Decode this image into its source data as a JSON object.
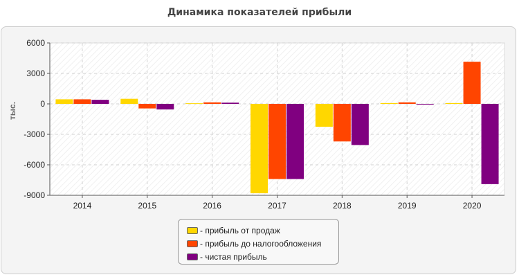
{
  "chart_data": {
    "type": "bar",
    "title": "Динамика показателей прибыли",
    "xlabel": "",
    "ylabel": "тыс.",
    "categories": [
      "2014",
      "2015",
      "2016",
      "2017",
      "2018",
      "2019",
      "2020"
    ],
    "ylim": [
      -9000,
      6000
    ],
    "yticks": [
      6000,
      3000,
      0,
      -3000,
      -6000,
      -9000
    ],
    "ytick_labels": [
      "6000",
      "3000",
      "0",
      "-3000",
      "-6000",
      "-9000"
    ],
    "grid": true,
    "legend_position": "bottom-center",
    "series": [
      {
        "name": "- прибыль от продаж",
        "color": "#ffd700",
        "values": [
          450,
          500,
          60,
          -8800,
          -2250,
          80,
          80
        ]
      },
      {
        "name": "- прибыль до налогообложения",
        "color": "#ff4500",
        "values": [
          450,
          -450,
          150,
          -7400,
          -3700,
          150,
          4150
        ]
      },
      {
        "name": "- чистая прибыль",
        "color": "#800080",
        "values": [
          400,
          -550,
          120,
          -7400,
          -4050,
          -50,
          -7900
        ]
      }
    ]
  }
}
